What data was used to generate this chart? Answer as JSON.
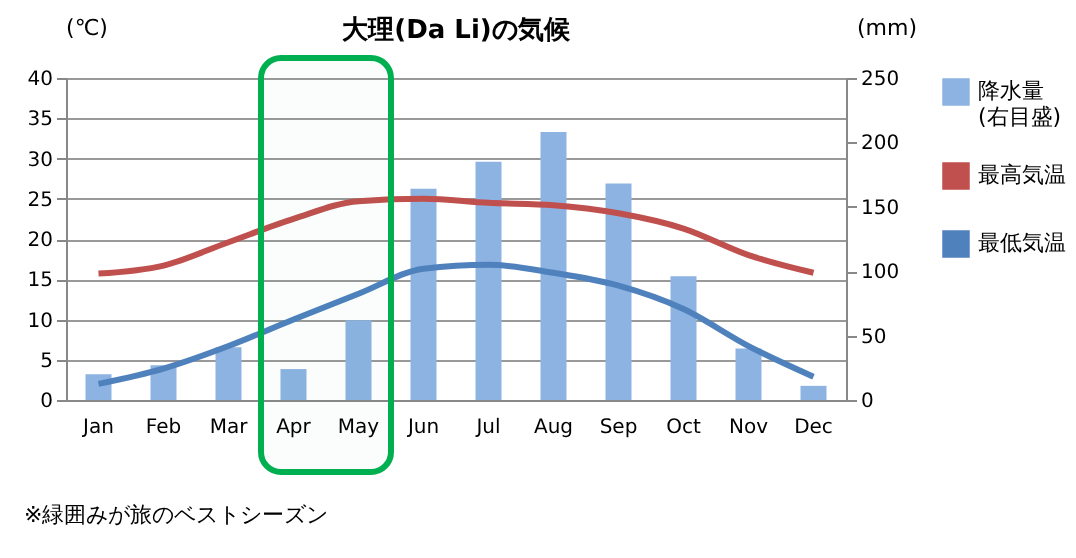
{
  "chart_data": {
    "type": "bar",
    "title": "大理(Da Li)の気候",
    "ylabel": "(℃)",
    "y2label": "(mm)",
    "categories": [
      "Jan",
      "Feb",
      "Mar",
      "Apr",
      "May",
      "Jun",
      "Jul",
      "Aug",
      "Sep",
      "Oct",
      "Nov",
      "Dec"
    ],
    "series": [
      {
        "name": "降水量\n(右目盛)",
        "axis": "y2",
        "color": "#8db3e2",
        "values": [
          20,
          27,
          41,
          24,
          62,
          164,
          185,
          208,
          168,
          96,
          40,
          11
        ]
      },
      {
        "name": "最高気温",
        "type": "line",
        "color": "#c0504d",
        "values": [
          15.7,
          16.7,
          19.6,
          22.5,
          24.7,
          25,
          24.5,
          24.2,
          23.2,
          21.3,
          18,
          15.8
        ]
      },
      {
        "name": "最低気温",
        "type": "line",
        "color": "#4f81bd",
        "values": [
          2,
          3.9,
          6.7,
          10,
          13.2,
          16.3,
          16.8,
          15.8,
          14.2,
          11.3,
          6.7,
          2.9
        ]
      }
    ],
    "ylim": [
      0,
      40
    ],
    "yticks": [
      0,
      5,
      10,
      15,
      20,
      25,
      30,
      35,
      40
    ],
    "y2lim": [
      0,
      250
    ],
    "y2ticks": [
      0,
      50,
      100,
      150,
      200,
      250
    ],
    "grid": "y",
    "legend": "right",
    "bands": [
      {
        "axis": "x",
        "from": "Apr",
        "to": "May",
        "color": "#00b050"
      }
    ],
    "annotations": [
      "※緑囲みが旅のベストシーズン"
    ]
  }
}
